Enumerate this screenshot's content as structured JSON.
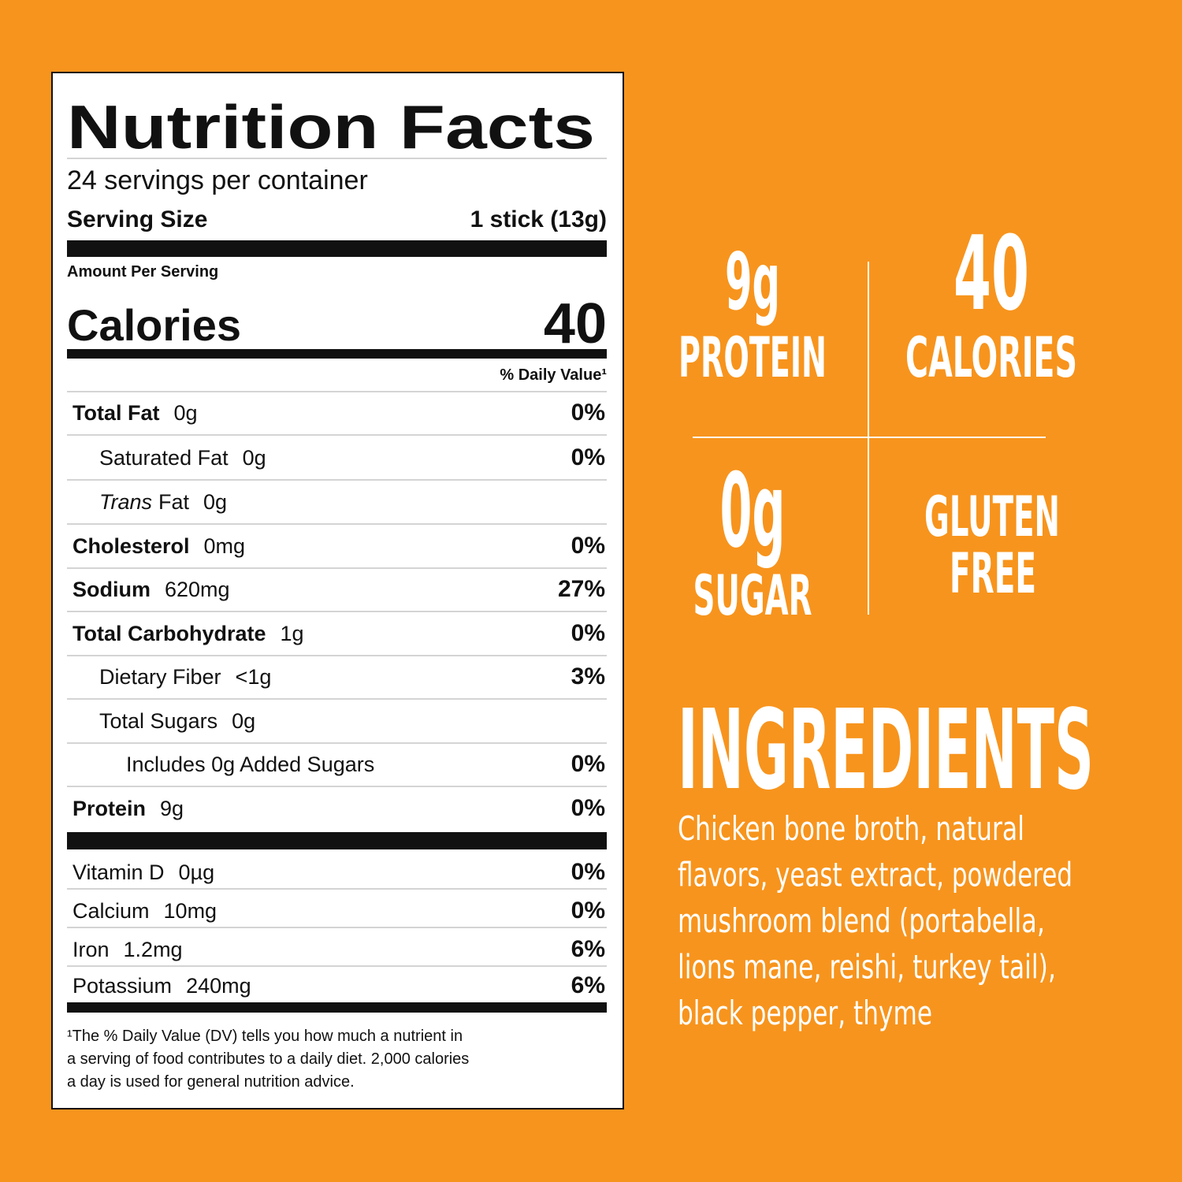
{
  "label": {
    "title": "Nutrition Facts",
    "servings": "24 servings per container",
    "serving_size_label": "Serving Size",
    "serving_size": "1 stick (13g)",
    "amount_per_serving": "Amount Per Serving",
    "calories_label": "Calories",
    "calories": "40",
    "daily_value_header": "% Daily Value¹",
    "nutrients": [
      {
        "name": "Total Fat",
        "amount": "0g",
        "dv": "0%"
      },
      {
        "name": "Saturated Fat",
        "amount": "0g",
        "dv": "0%"
      },
      {
        "name_italic": "Trans",
        "name": "Fat",
        "amount": "0g"
      },
      {
        "name": "Cholesterol",
        "amount": "0mg",
        "dv": "0%"
      },
      {
        "name": "Sodium",
        "amount": "620mg",
        "dv": "27%"
      },
      {
        "name": "Total Carbohydrate",
        "amount": "1g",
        "dv": "0%"
      },
      {
        "name": "Dietary Fiber",
        "amount": "<1g",
        "dv": "3%"
      },
      {
        "name": "Total Sugars",
        "amount": "0g"
      },
      {
        "name": "Includes 0g Added Sugars",
        "dv": "0%"
      },
      {
        "name": "Protein",
        "amount": "9g",
        "dv": "0%"
      }
    ],
    "vitamins": [
      {
        "name": "Vitamin D",
        "amount": "0µg",
        "dv": "0%"
      },
      {
        "name": "Calcium",
        "amount": "10mg",
        "dv": "0%"
      },
      {
        "name": "Iron",
        "amount": "1.2mg",
        "dv": "6%"
      },
      {
        "name": "Potassium",
        "amount": "240mg",
        "dv": "6%"
      }
    ],
    "footnote": [
      "¹The % Daily Value (DV) tells you how much a nutrient in",
      "a serving of food contributes to a daily diet. 2,000 calories",
      "a day is used for general nutrition advice."
    ]
  },
  "highlights": [
    {
      "value": "9g",
      "label": "PROTEIN"
    },
    {
      "value": "40",
      "label": "CALORIES"
    },
    {
      "value": "0g",
      "label": "SUGAR"
    },
    {
      "label_lines": [
        "GLUTEN",
        "FREE"
      ]
    }
  ],
  "ingredients": {
    "title": "INGREDIENTS",
    "lines": [
      "Chicken bone broth, natural",
      "flavors, yeast extract, powdered",
      "mushroom blend (portabella,",
      "lions mane, reishi, turkey tail),",
      "black pepper, thyme"
    ]
  }
}
